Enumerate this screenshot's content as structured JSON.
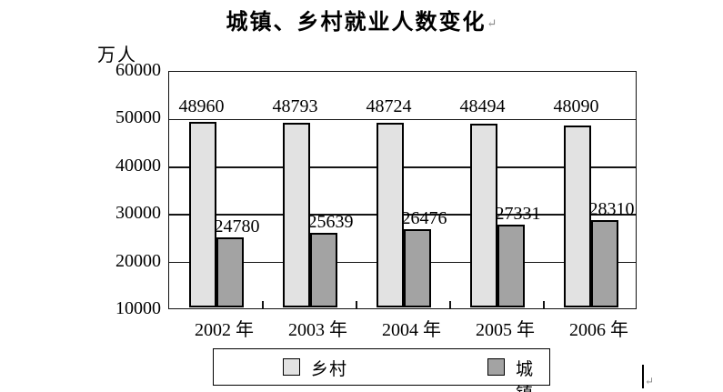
{
  "title": {
    "text": "城镇、乡村就业人数变化",
    "return_mark": "↵"
  },
  "cursor": {
    "return_mark": "↵"
  },
  "chart_data": {
    "type": "bar",
    "title": "城镇、乡村就业人数变化",
    "ylabel": "万人",
    "xlabel": "",
    "ylim": [
      10000,
      60000
    ],
    "yticks": [
      60000,
      50000,
      40000,
      30000,
      20000,
      10000
    ],
    "grid": true,
    "legend_position": "bottom",
    "bar_label_color": "#000000",
    "categories": [
      "2002 年",
      "2003 年",
      "2004 年",
      "2005 年",
      "2006 年"
    ],
    "series": [
      {
        "name": "乡村",
        "color": "#e2e2e2",
        "values": [
          48960,
          48793,
          48724,
          48494,
          48090
        ]
      },
      {
        "name": "城镇",
        "color": "#a3a3a3",
        "values": [
          24780,
          25639,
          26476,
          27331,
          28310
        ]
      }
    ]
  }
}
